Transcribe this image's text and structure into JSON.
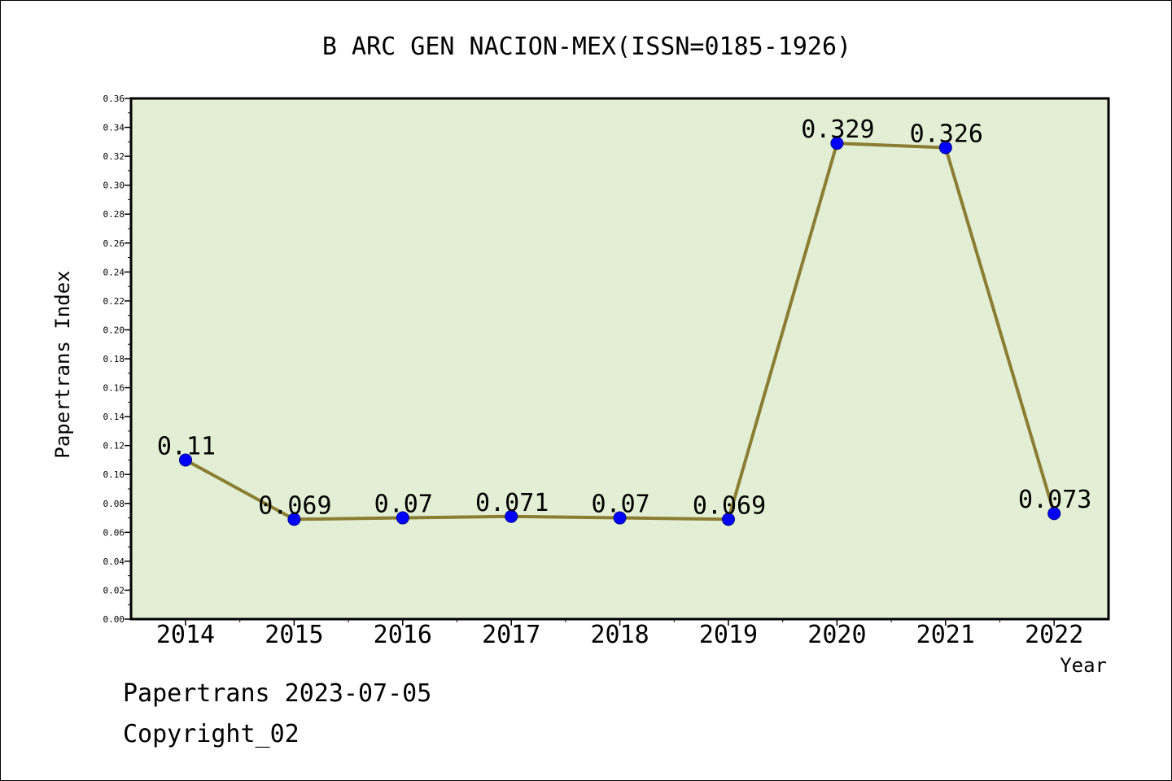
{
  "chart_data": {
    "type": "line",
    "title": "B ARC GEN NACION-MEX(ISSN=0185-1926)",
    "xlabel": "Year",
    "ylabel": "Papertrans Index",
    "categories": [
      "2014",
      "2015",
      "2016",
      "2017",
      "2018",
      "2019",
      "2020",
      "2021",
      "2022"
    ],
    "values": [
      0.11,
      0.069,
      0.07,
      0.071,
      0.07,
      0.069,
      0.329,
      0.326,
      0.073
    ],
    "data_labels": [
      "0.11",
      "0.069",
      "0.07",
      "0.071",
      "0.07",
      "0.069",
      "0.329",
      "0.326",
      "0.073"
    ],
    "ylim": [
      0,
      0.36
    ],
    "yticks": [
      "0.00",
      "0.02",
      "0.04",
      "0.06",
      "0.08",
      "0.10",
      "0.12",
      "0.14",
      "0.16",
      "0.18",
      "0.20",
      "0.22",
      "0.24",
      "0.26",
      "0.28",
      "0.30",
      "0.32",
      "0.34",
      "0.36"
    ],
    "grid": false,
    "colors": {
      "plot_background": "#e2efd4",
      "line": "#8b7d32",
      "marker": "#0000ff"
    }
  },
  "footer": {
    "date_line": "Papertrans 2023-07-05",
    "copyright": "Copyright_02"
  }
}
